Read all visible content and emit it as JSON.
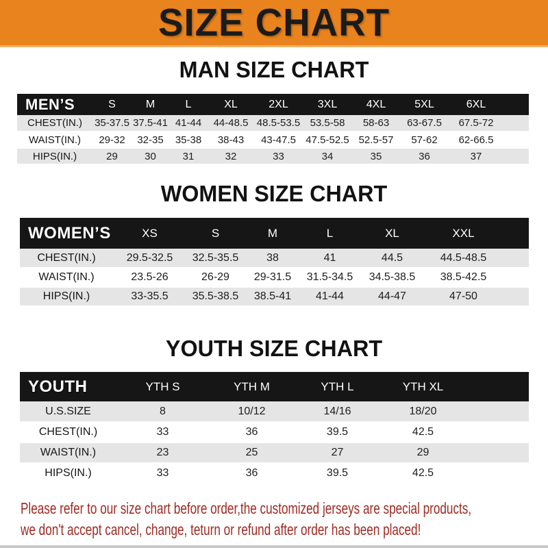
{
  "banner": {
    "title": "SIZE CHART"
  },
  "colors": {
    "banner_bg": "#E8831E",
    "table_header_bg": "#161616",
    "row_stripe": "#E5E5E5",
    "footer_text": "#9E2B23"
  },
  "chart_data": [
    {
      "type": "table",
      "title": "MAN SIZE CHART",
      "corner_label": "MEN’S",
      "columns": [
        "S",
        "M",
        "L",
        "XL",
        "2XL",
        "3XL",
        "4XL",
        "5XL",
        "6XL"
      ],
      "rows": [
        {
          "label": "CHEST(IN.)",
          "values": [
            "35-37.5",
            "37.5-41",
            "41-44",
            "44-48.5",
            "48.5-53.5",
            "53.5-58",
            "58-63",
            "63-67.5",
            "67.5-72"
          ]
        },
        {
          "label": "WAIST(IN.)",
          "values": [
            "29-32",
            "32-35",
            "35-38",
            "38-43",
            "43-47.5",
            "47.5-52.5",
            "52.5-57",
            "57-62",
            "62-66.5"
          ]
        },
        {
          "label": "HIPS(IN.)",
          "values": [
            "29",
            "30",
            "31",
            "32",
            "33",
            "34",
            "35",
            "36",
            "37"
          ]
        }
      ]
    },
    {
      "type": "table",
      "title": "WOMEN SIZE CHART",
      "corner_label": "WOMEN’S",
      "columns": [
        "XS",
        "S",
        "M",
        "L",
        "XL",
        "XXL"
      ],
      "rows": [
        {
          "label": "CHEST(IN.)",
          "values": [
            "29.5-32.5",
            "32.5-35.5",
            "38",
            "41",
            "44.5",
            "44.5-48.5"
          ]
        },
        {
          "label": "WAIST(IN.)",
          "values": [
            "23.5-26",
            "26-29",
            "29-31.5",
            "31.5-34.5",
            "34.5-38.5",
            "38.5-42.5"
          ]
        },
        {
          "label": "HIPS(IN.)",
          "values": [
            "33-35.5",
            "35.5-38.5",
            "38.5-41",
            "41-44",
            "44-47",
            "47-50"
          ]
        }
      ]
    },
    {
      "type": "table",
      "title": "YOUTH SIZE CHART",
      "corner_label": "YOUTH",
      "columns": [
        "YTH S",
        "YTH M",
        "YTH L",
        "YTH XL"
      ],
      "rows": [
        {
          "label": "U.S.SIZE",
          "values": [
            "8",
            "10/12",
            "14/16",
            "18/20"
          ]
        },
        {
          "label": "CHEST(IN.)",
          "values": [
            "33",
            "36",
            "39.5",
            "42.5"
          ]
        },
        {
          "label": "WAIST(IN.)",
          "values": [
            "23",
            "25",
            "27",
            "29"
          ]
        },
        {
          "label": "HIPS(IN.)",
          "values": [
            "33",
            "36",
            "39.5",
            "42.5"
          ]
        }
      ]
    }
  ],
  "footer": {
    "line1": "Please refer to our size chart before order,the customized jerseys are special products,",
    "line2": "we don't accept cancel, change, teturn or refund after order has been placed!"
  }
}
